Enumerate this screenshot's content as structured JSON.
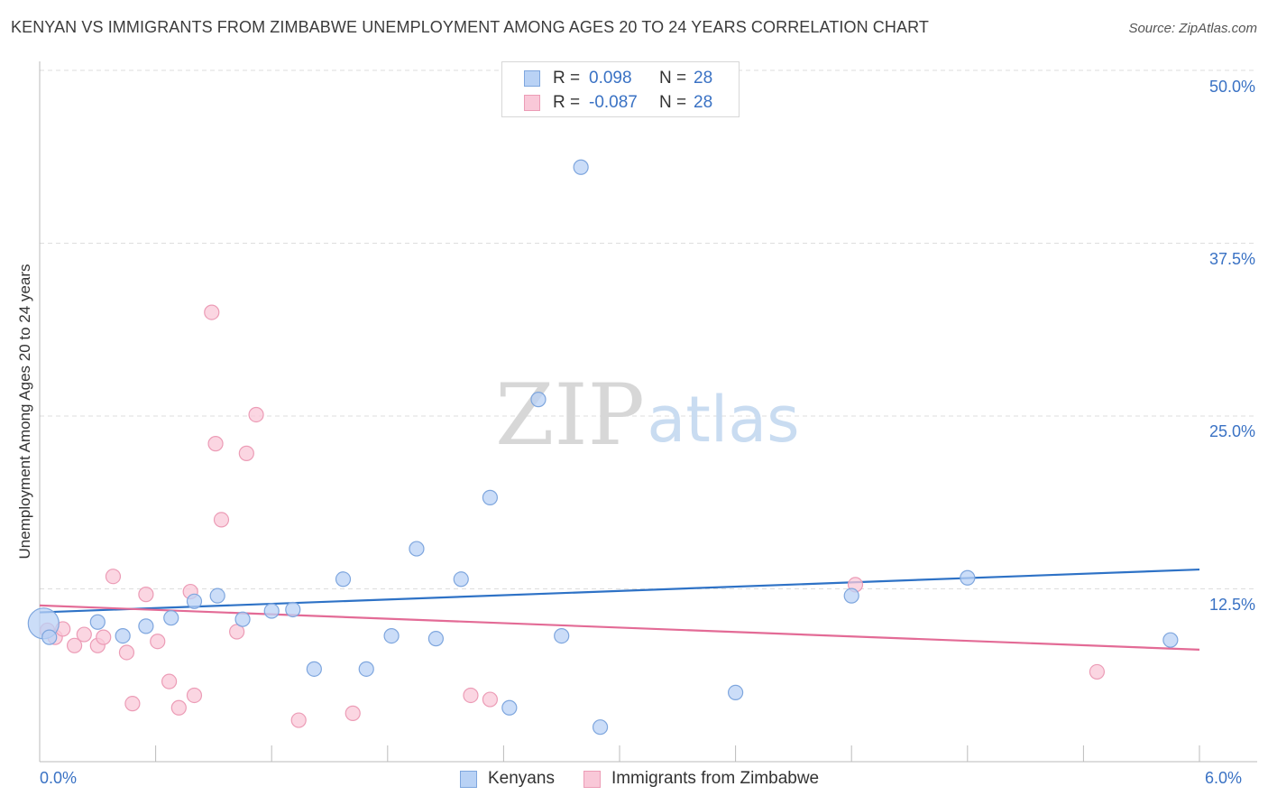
{
  "header": {
    "title": "KENYAN VS IMMIGRANTS FROM ZIMBABWE UNEMPLOYMENT AMONG AGES 20 TO 24 YEARS CORRELATION CHART",
    "source": "Source: ZipAtlas.com"
  },
  "watermark": {
    "zip": "ZIP",
    "atlas": "atlas"
  },
  "legend": {
    "rows": [
      {
        "r_label": "R =",
        "r_value": "0.098",
        "n_label": "N =",
        "n_value": "28"
      },
      {
        "r_label": "R =",
        "r_value": "-0.087",
        "n_label": "N =",
        "n_value": "28"
      }
    ]
  },
  "colors": {
    "kenyans_fill": "#b9d2f5",
    "kenyans_stroke": "#7ea6de",
    "kenyans_line": "#2e72c6",
    "zimbabwe_fill": "#f9c8d8",
    "zimbabwe_stroke": "#ec9cb6",
    "zimbabwe_line": "#e36b96",
    "tick_text": "#3a72c4",
    "grid": "#dddddd"
  },
  "chart_data": {
    "type": "scatter",
    "xlabel": "",
    "ylabel": "Unemployment Among Ages 20 to 24 years",
    "xlim": [
      0,
      6
    ],
    "ylim": [
      0,
      50
    ],
    "x_tick_labels": [
      "0.0%",
      "6.0%"
    ],
    "y_ticks": [
      12.5,
      25.0,
      37.5,
      50.0
    ],
    "y_tick_labels": [
      "12.5%",
      "25.0%",
      "37.5%",
      "50.0%"
    ],
    "grid": true,
    "series": [
      {
        "name": "Kenyans",
        "points": [
          {
            "x": 0.02,
            "y": 10.0,
            "big": true
          },
          {
            "x": 0.3,
            "y": 10.1
          },
          {
            "x": 0.55,
            "y": 9.8
          },
          {
            "x": 0.05,
            "y": 9.0
          },
          {
            "x": 0.43,
            "y": 9.1
          },
          {
            "x": 0.68,
            "y": 10.4
          },
          {
            "x": 0.8,
            "y": 11.6
          },
          {
            "x": 0.92,
            "y": 12.0
          },
          {
            "x": 1.05,
            "y": 10.3
          },
          {
            "x": 1.2,
            "y": 10.9
          },
          {
            "x": 1.31,
            "y": 11.0
          },
          {
            "x": 1.42,
            "y": 6.7
          },
          {
            "x": 1.57,
            "y": 13.2
          },
          {
            "x": 1.69,
            "y": 6.7
          },
          {
            "x": 1.82,
            "y": 9.1
          },
          {
            "x": 1.95,
            "y": 15.4
          },
          {
            "x": 2.05,
            "y": 8.9
          },
          {
            "x": 2.18,
            "y": 13.2
          },
          {
            "x": 2.33,
            "y": 19.1
          },
          {
            "x": 2.43,
            "y": 3.9
          },
          {
            "x": 2.58,
            "y": 26.2
          },
          {
            "x": 2.7,
            "y": 9.1
          },
          {
            "x": 2.8,
            "y": 43.0
          },
          {
            "x": 2.9,
            "y": 2.5
          },
          {
            "x": 3.6,
            "y": 5.0
          },
          {
            "x": 4.2,
            "y": 12.0
          },
          {
            "x": 4.8,
            "y": 13.3
          },
          {
            "x": 5.85,
            "y": 8.8
          }
        ]
      },
      {
        "name": "Immigrants from Zimbabwe",
        "points": [
          {
            "x": 0.04,
            "y": 9.5
          },
          {
            "x": 0.08,
            "y": 9.0
          },
          {
            "x": 0.12,
            "y": 9.6
          },
          {
            "x": 0.18,
            "y": 8.4
          },
          {
            "x": 0.23,
            "y": 9.2
          },
          {
            "x": 0.3,
            "y": 8.4
          },
          {
            "x": 0.33,
            "y": 9.0
          },
          {
            "x": 0.38,
            "y": 13.4
          },
          {
            "x": 0.45,
            "y": 7.9
          },
          {
            "x": 0.48,
            "y": 4.2
          },
          {
            "x": 0.55,
            "y": 12.1
          },
          {
            "x": 0.61,
            "y": 8.7
          },
          {
            "x": 0.67,
            "y": 5.8
          },
          {
            "x": 0.72,
            "y": 3.9
          },
          {
            "x": 0.78,
            "y": 12.3
          },
          {
            "x": 0.8,
            "y": 4.8
          },
          {
            "x": 0.89,
            "y": 32.5
          },
          {
            "x": 0.91,
            "y": 23.0
          },
          {
            "x": 0.94,
            "y": 17.5
          },
          {
            "x": 1.02,
            "y": 9.4
          },
          {
            "x": 1.07,
            "y": 22.3
          },
          {
            "x": 1.12,
            "y": 25.1
          },
          {
            "x": 1.34,
            "y": 3.0
          },
          {
            "x": 1.62,
            "y": 3.5
          },
          {
            "x": 2.23,
            "y": 4.8
          },
          {
            "x": 2.33,
            "y": 4.5
          },
          {
            "x": 4.22,
            "y": 12.8
          },
          {
            "x": 5.47,
            "y": 6.5
          }
        ]
      }
    ],
    "trend_lines": [
      {
        "series": "Kenyans",
        "x": [
          0,
          6
        ],
        "y": [
          10.8,
          13.9
        ]
      },
      {
        "series": "Immigrants from Zimbabwe",
        "x": [
          0,
          6
        ],
        "y": [
          11.3,
          8.1
        ]
      }
    ]
  },
  "bottom_legend": {
    "kenyans": "Kenyans",
    "zimbabwe": "Immigrants from Zimbabwe"
  }
}
